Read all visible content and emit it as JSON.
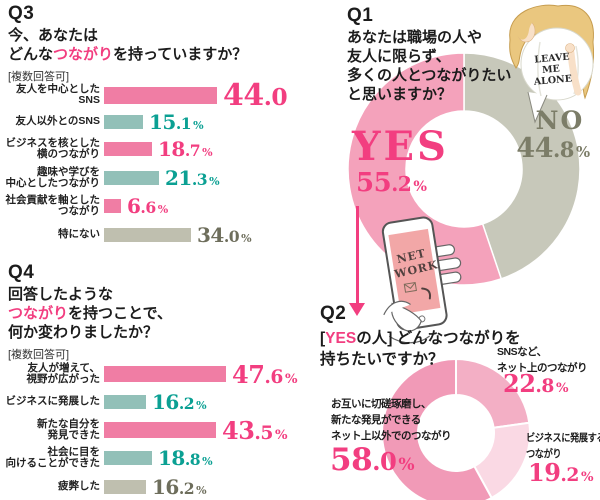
{
  "palette": {
    "bar_pink": "#f07da4",
    "bar_teal": "#92c0b8",
    "bar_gray": "#bfbfaf",
    "num_pink": "#f23e80",
    "num_teal": "#0ba093",
    "num_gray": "#6e6e5c",
    "donut_yes_pink": "#f4a2bb",
    "donut_no_gray": "#c7c8ba",
    "no_text": "#7c7d68",
    "q2_slice_sns": "#f3afc5",
    "q2_slice_biz": "#fad9e4",
    "q2_slice_real": "#f19ab7",
    "text_black": "#1c1c1c",
    "phone_screen": "#f2a7a7",
    "hair": "#eac77f",
    "skin": "#f8e0c8"
  },
  "q3": {
    "heading": "Q3",
    "title_lines": [
      [
        {
          "t": "今、あなたは"
        }
      ],
      [
        {
          "t": "どんな"
        },
        {
          "t": "つながり",
          "pink": true
        },
        {
          "t": "を持っていますか？"
        }
      ]
    ],
    "note": "[複数回答可]",
    "rows": [
      {
        "label_lines": [
          "友人を中心としたSNS"
        ],
        "value": "44.0",
        "unit": "",
        "color": "pink",
        "size": "xl"
      },
      {
        "label_lines": [
          "友人以外とのSNS"
        ],
        "value": "15.1",
        "unit": "%",
        "color": "teal",
        "size": "md"
      },
      {
        "label_lines": [
          "ビジネスを核とした",
          "横のつながり"
        ],
        "value": "18.7",
        "unit": "%",
        "color": "pink",
        "size": "md"
      },
      {
        "label_lines": [
          "趣味や学びを",
          "中心としたつながり"
        ],
        "value": "21.3",
        "unit": "%",
        "color": "teal",
        "size": "md"
      },
      {
        "label_lines": [
          "社会貢献を軸とした",
          "つながり"
        ],
        "value": "6.6",
        "unit": "%",
        "color": "pink",
        "size": "md"
      },
      {
        "label_lines": [
          "特にない"
        ],
        "value": "34.0",
        "unit": "%",
        "color": "gray",
        "size": "md"
      }
    ]
  },
  "q4": {
    "heading": "Q4",
    "title_lines": [
      [
        {
          "t": "回答したような"
        }
      ],
      [
        {
          "t": "つながり",
          "pink": true
        },
        {
          "t": "を持つことで、"
        }
      ],
      [
        {
          "t": "何か変わりましたか？"
        }
      ]
    ],
    "note": "[複数回答可]",
    "rows": [
      {
        "label_lines": [
          "友人が増えて、",
          "視野が広がった"
        ],
        "value": "47.6",
        "unit": "%",
        "color": "pink",
        "size": "lg"
      },
      {
        "label_lines": [
          "ビジネスに発展した"
        ],
        "value": "16.2",
        "unit": "%",
        "color": "teal",
        "size": "md"
      },
      {
        "label_lines": [
          "新たな自分を",
          "発見できた"
        ],
        "value": "43.5",
        "unit": "%",
        "color": "pink",
        "size": "lg"
      },
      {
        "label_lines": [
          "社会に目を",
          "向けることができた"
        ],
        "value": "18.8",
        "unit": "%",
        "color": "teal",
        "size": "md"
      },
      {
        "label_lines": [
          "疲弊した"
        ],
        "value": "16.2",
        "unit": "%",
        "color": "gray",
        "size": "md"
      }
    ]
  },
  "q1": {
    "heading": "Q1",
    "title_lines": [
      [
        {
          "t": "あなたは職場の人や"
        }
      ],
      [
        {
          "t": "友人に限らず、"
        }
      ],
      [
        {
          "t": "多くの人とつながりたい"
        }
      ],
      [
        {
          "t": "と思いますか？"
        }
      ]
    ],
    "donut_slices": [
      {
        "label": "NO",
        "value": 44.8,
        "colorKey": "donut_no_gray"
      },
      {
        "label": "YES",
        "value": 55.2,
        "colorKey": "donut_yes_pink"
      }
    ],
    "yes": {
      "word": "YES",
      "value": "55.2",
      "unit": "%"
    },
    "no": {
      "word": "NO",
      "value": "44.8",
      "unit": "%"
    }
  },
  "q2": {
    "heading": "Q2",
    "title_lines": [
      [
        {
          "t": "["
        },
        {
          "t": "YES",
          "pink": true
        },
        {
          "t": "の人] どんなつながりを"
        }
      ],
      [
        {
          "t": "持ちたいですか？"
        }
      ]
    ],
    "donut_slices": [
      {
        "label": "SNSなど、ネット上のつながり",
        "value": 22.8,
        "colorKey": "q2_slice_sns"
      },
      {
        "label": "ビジネスに発展するつながり",
        "value": 19.2,
        "colorKey": "q2_slice_biz"
      },
      {
        "label": "お互いに切磋琢磨し、新たな発見ができるネット上以外でのつながり",
        "value": 58.0,
        "colorKey": "q2_slice_real"
      }
    ],
    "callouts": {
      "sns": {
        "lines": [
          "SNSなど、",
          "ネット上のつながり"
        ],
        "value": "22.8",
        "unit": "%"
      },
      "biz": {
        "lines": [
          "ビジネスに発展する",
          "つながり"
        ],
        "value": "19.2",
        "unit": "%"
      },
      "real": {
        "lines": [
          "お互いに切磋琢磨し、",
          "新たな発見ができる",
          "ネット上以外でのつながり"
        ],
        "value": "58.0",
        "unit": "%"
      }
    }
  },
  "illos": {
    "tshirt": [
      "LEAVE",
      "ME",
      "ALONE"
    ],
    "phone": [
      "NET",
      "WORK"
    ]
  },
  "chart_data": [
    {
      "id": "Q1",
      "type": "pie",
      "style": "donut",
      "title": "あなたは職場の人や友人に限らず、多くの人とつながりたいと思いますか？",
      "labels": [
        "NO",
        "YES"
      ],
      "values": [
        44.8,
        55.2
      ],
      "unit": "%",
      "start": "top",
      "direction": "clockwise"
    },
    {
      "id": "Q2",
      "type": "pie",
      "style": "donut",
      "title": "[YESの人] どんなつながりを持ちたいですか？",
      "labels": [
        "SNSなど、ネット上のつながり",
        "ビジネスに発展するつながり",
        "お互いに切磋琢磨し、新たな発見ができるネット上以外でのつながり"
      ],
      "values": [
        22.8,
        19.2,
        58.0
      ],
      "unit": "%",
      "start": "top",
      "direction": "clockwise"
    },
    {
      "id": "Q3",
      "type": "bar",
      "orientation": "horizontal",
      "title": "今、あなたはどんなつながりを持っていますか？",
      "note": "複数回答可",
      "categories": [
        "友人を中心としたSNS",
        "友人以外とのSNS",
        "ビジネスを核とした横のつながり",
        "趣味や学びを中心としたつながり",
        "社会貢献を軸としたつながり",
        "特にない"
      ],
      "values": [
        44.0,
        15.1,
        18.7,
        21.3,
        6.6,
        34.0
      ],
      "unit": "%"
    },
    {
      "id": "Q4",
      "type": "bar",
      "orientation": "horizontal",
      "title": "回答したようなつながりを持つことで、何か変わりましたか？",
      "note": "複数回答可",
      "categories": [
        "友人が増えて、視野が広がった",
        "ビジネスに発展した",
        "新たな自分を発見できた",
        "社会に目を向けることができた",
        "疲弊した"
      ],
      "values": [
        47.6,
        16.2,
        43.5,
        18.8,
        16.2
      ],
      "unit": "%"
    }
  ]
}
